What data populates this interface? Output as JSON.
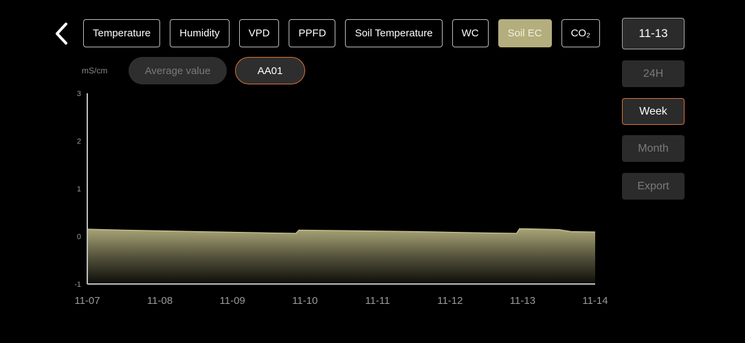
{
  "tabs": [
    "Temperature",
    "Humidity",
    "VPD",
    "PPFD",
    "Soil Temperature",
    "WC",
    "Soil EC",
    "CO₂"
  ],
  "active_tab": "Soil EC",
  "date_button": "11-13",
  "ranges": [
    "24H",
    "Week",
    "Month"
  ],
  "active_range": "Week",
  "export_label": "Export",
  "unit": "mS/cm",
  "series_pills": {
    "average": "Average value",
    "device": "AA01"
  },
  "colors": {
    "accent": "#b4ae7e",
    "selected_border": "#d9743a"
  },
  "chart_data": {
    "type": "area",
    "ylabel": "mS/cm",
    "ylim": [
      -1,
      3
    ],
    "yticks": [
      "3",
      "2",
      "1",
      "0",
      "-1"
    ],
    "xticks": [
      "11-07",
      "11-08",
      "11-09",
      "11-10",
      "11-11",
      "11-12",
      "11-13",
      "11-14"
    ],
    "series": [
      {
        "name": "AA01",
        "points": [
          [
            "11-07 00:00",
            0.15
          ],
          [
            "11-07 12:00",
            0.13
          ],
          [
            "11-08 12:00",
            0.1
          ],
          [
            "11-09 12:00",
            0.07
          ],
          [
            "11-09 21:00",
            0.06
          ],
          [
            "11-09 22:00",
            0.13
          ],
          [
            "11-10 12:00",
            0.12
          ],
          [
            "11-11 12:00",
            0.1
          ],
          [
            "11-12 12:00",
            0.07
          ],
          [
            "11-12 22:00",
            0.06
          ],
          [
            "11-12 23:00",
            0.16
          ],
          [
            "11-13 12:00",
            0.14
          ],
          [
            "11-13 16:00",
            0.1
          ],
          [
            "11-14 00:00",
            0.09
          ]
        ]
      }
    ]
  }
}
